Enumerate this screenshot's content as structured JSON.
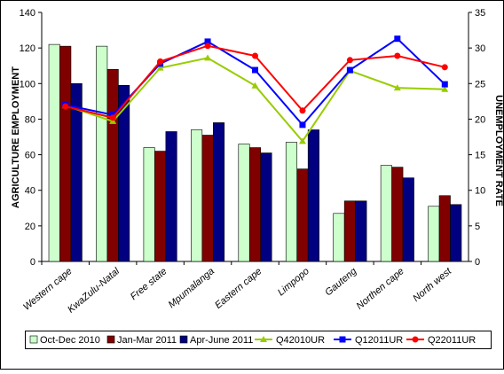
{
  "chart_data": {
    "type": "bar",
    "y_label": "AGRICULTURE EMPLOYMENT",
    "y2_label": "UNEMPLOYMENT RATE",
    "categories": [
      "Western cape",
      "KwaZulu-Natal",
      "Free state",
      "Mpumalanga",
      "Eastern cape",
      "Limpopo",
      "Gauteng",
      "Northen cape",
      "North west"
    ],
    "series": [
      {
        "name": "Oct-Dec 2010",
        "color": "#ccffcc",
        "values": [
          122,
          121,
          64,
          74,
          66,
          67,
          27,
          54,
          31
        ]
      },
      {
        "name": "Jan-Mar 2011",
        "color": "#800000",
        "values": [
          121,
          108,
          62,
          71,
          64,
          52,
          34,
          53,
          37
        ]
      },
      {
        "name": "Apr-June 2011",
        "color": "#000080",
        "values": [
          100,
          99,
          73,
          78,
          61,
          74,
          34,
          47,
          32
        ]
      },
      {
        "name": "Q42010UR",
        "type": "line",
        "axis": "y2",
        "marker": "triangle",
        "color": "#99cc00",
        "values": [
          21.9,
          19.7,
          27.2,
          28.6,
          24.7,
          16.9,
          26.8,
          24.4,
          24.2
        ]
      },
      {
        "name": "Q12011UR",
        "type": "line",
        "axis": "y2",
        "marker": "square",
        "color": "#0000ff",
        "values": [
          22.0,
          20.6,
          27.8,
          30.9,
          26.9,
          19.2,
          26.9,
          31.3,
          24.9
        ]
      },
      {
        "name": "Q22011UR",
        "type": "line",
        "axis": "y2",
        "marker": "circle",
        "color": "#ff0000",
        "values": [
          21.8,
          20.2,
          28.1,
          30.3,
          28.9,
          21.2,
          28.3,
          28.9,
          27.3
        ]
      }
    ],
    "ylim": [
      0,
      140
    ],
    "yticks": [
      0,
      20,
      40,
      60,
      80,
      100,
      120,
      140
    ],
    "y2lim": [
      0,
      35
    ],
    "y2ticks": [
      0,
      5,
      10,
      15,
      20,
      25,
      30,
      35
    ]
  }
}
